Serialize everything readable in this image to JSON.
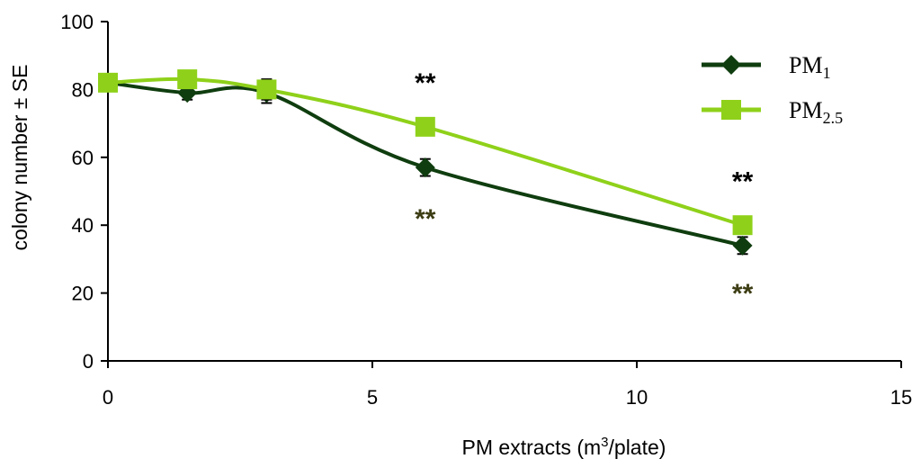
{
  "chart_data": {
    "type": "line",
    "xlabel": {
      "prefix": "PM extracts (m",
      "sup": "3",
      "suffix": "/plate)"
    },
    "ylabel": "colony number ± SE",
    "xlim": [
      0,
      15
    ],
    "ylim": [
      0,
      100
    ],
    "xticks": [
      0,
      5,
      10,
      15
    ],
    "yticks": [
      0,
      20,
      40,
      60,
      80,
      100
    ],
    "series": [
      {
        "name": "PM1",
        "legend": {
          "base": "PM",
          "sub": "1"
        },
        "color": "#0f3d0f",
        "marker": "diamond",
        "x": [
          0,
          1.5,
          3,
          6,
          12
        ],
        "y": [
          82,
          79,
          79,
          57,
          34
        ],
        "se": [
          1.5,
          2,
          3,
          2.5,
          2.5
        ]
      },
      {
        "name": "PM2.5",
        "legend": {
          "base": "PM",
          "sub": "2.5"
        },
        "color": "#8fd11a",
        "marker": "square",
        "x": [
          0,
          1.5,
          3,
          6,
          12
        ],
        "y": [
          82,
          83,
          80,
          69,
          40
        ],
        "se": [
          1.5,
          2,
          3,
          2,
          2.5
        ]
      }
    ],
    "annotations": [
      {
        "text": "**",
        "x": 6,
        "y": 83,
        "color": "#000000"
      },
      {
        "text": "**",
        "x": 6,
        "y": 43,
        "color": "#3d3d14"
      },
      {
        "text": "**",
        "x": 12,
        "y": 54,
        "color": "#000000"
      },
      {
        "text": "**",
        "x": 12,
        "y": 21,
        "color": "#3d3d14"
      }
    ]
  }
}
